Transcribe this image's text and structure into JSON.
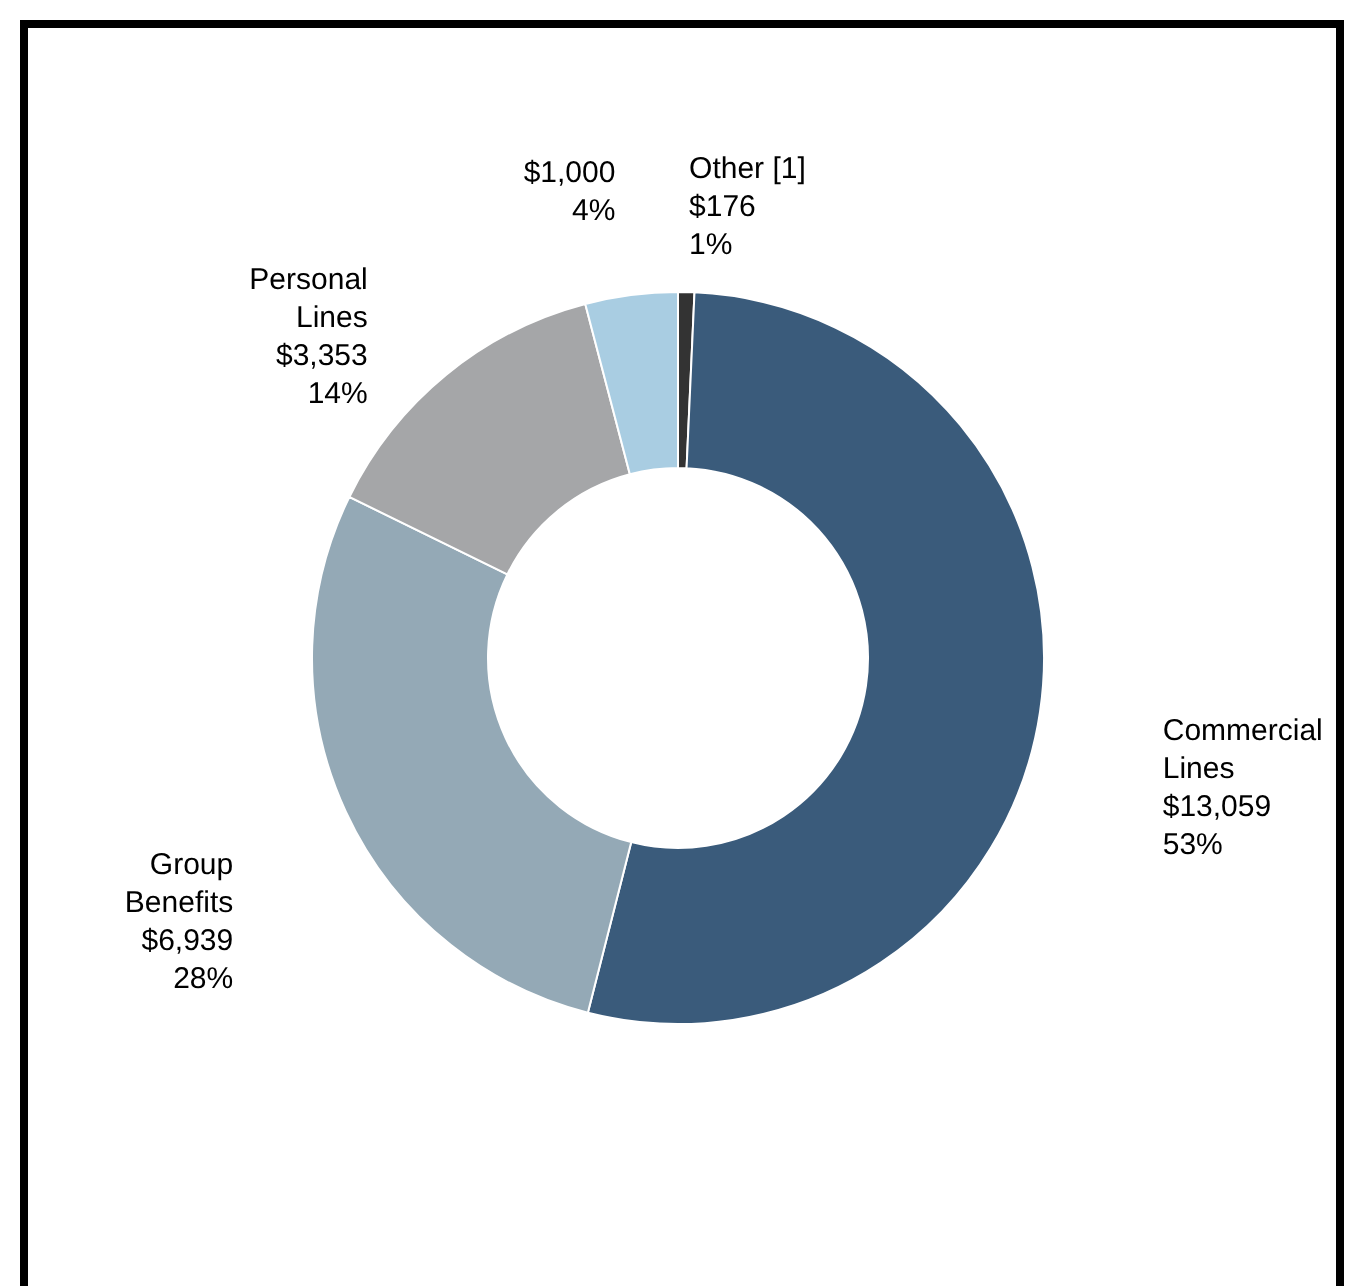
{
  "chart_data": {
    "type": "donut",
    "categories": [
      "Other [1]",
      "Commercial\nLines",
      "Group\nBenefits",
      "Personal\nLines",
      null
    ],
    "values": [
      176,
      13059,
      6939,
      3353,
      1000
    ],
    "value_labels": [
      "$176\n1%",
      "$13,059\n53%",
      "$6,939\n28%",
      "$3,353\n14%",
      "$1,000\n4%"
    ],
    "colors": [
      "#333333",
      "#3a5b7b",
      "#94a9b6",
      "#a5a6a8",
      "#a9cde2"
    ]
  }
}
